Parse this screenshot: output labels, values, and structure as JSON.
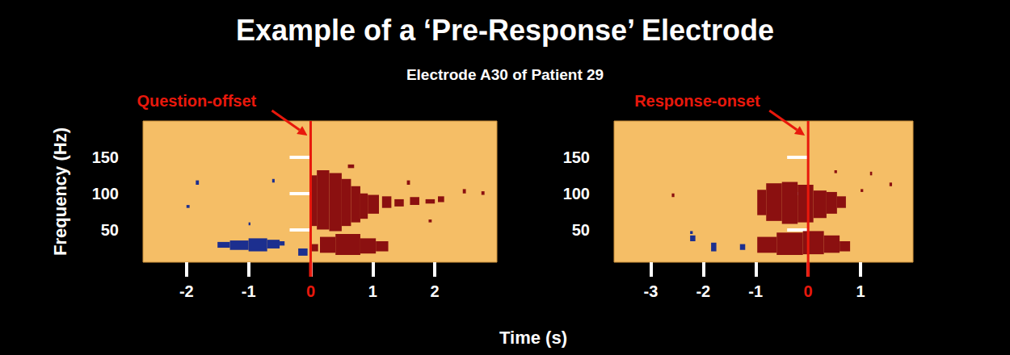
{
  "title": "Example of a ‘Pre-Response’ Electrode",
  "subtitle": "Electrode A30 of Patient 29",
  "xlabel": "Time (s)",
  "ylabel": "Frequency (Hz)",
  "chart_data": [
    {
      "type": "heatmap",
      "title": "Question-offset",
      "event_time": 0,
      "xlim": [
        -2.7,
        3.0
      ],
      "xticks": [
        -2,
        -1,
        0,
        1,
        2
      ],
      "ylim": [
        5,
        200
      ],
      "yticks": [
        50,
        100,
        150
      ],
      "series": [
        {
          "color": "#8b1010",
          "cells": [
            [
              0.0,
              0.1,
              55,
              125
            ],
            [
              0.1,
              0.3,
              50,
              132
            ],
            [
              0.3,
              0.5,
              48,
              128
            ],
            [
              0.5,
              0.65,
              55,
              120
            ],
            [
              0.65,
              0.8,
              60,
              110
            ],
            [
              0.8,
              0.92,
              65,
              100
            ],
            [
              0.92,
              1.1,
              72,
              98
            ],
            [
              1.15,
              1.3,
              80,
              96
            ],
            [
              1.35,
              1.5,
              82,
              92
            ],
            [
              1.6,
              1.75,
              84,
              95
            ],
            [
              1.85,
              2.0,
              86,
              92
            ],
            [
              2.05,
              2.15,
              88,
              96
            ],
            [
              0.15,
              0.4,
              18,
              40
            ],
            [
              0.4,
              0.8,
              15,
              44
            ],
            [
              0.8,
              1.05,
              17,
              38
            ],
            [
              1.05,
              1.25,
              20,
              34
            ],
            [
              0.0,
              0.12,
              20,
              30
            ],
            [
              2.45,
              2.5,
              100,
              106
            ],
            [
              2.75,
              2.8,
              98,
              103
            ],
            [
              1.55,
              1.6,
              112,
              118
            ],
            [
              0.6,
              0.7,
              135,
              140
            ],
            [
              1.9,
              1.95,
              60,
              64
            ]
          ]
        },
        {
          "color": "#1c2f8f",
          "cells": [
            [
              -1.5,
              -1.3,
              25,
              33
            ],
            [
              -1.3,
              -1.0,
              22,
              35
            ],
            [
              -1.0,
              -0.7,
              20,
              38
            ],
            [
              -0.7,
              -0.5,
              24,
              36
            ],
            [
              -0.5,
              -0.42,
              28,
              34
            ],
            [
              -1.85,
              -1.8,
              112,
              118
            ],
            [
              -1.0,
              -0.97,
              56,
              60
            ],
            [
              -0.62,
              -0.58,
              115,
              120
            ],
            [
              -2.0,
              -1.95,
              80,
              84
            ],
            [
              -0.2,
              -0.05,
              14,
              24
            ]
          ]
        }
      ]
    },
    {
      "type": "heatmap",
      "title": "Response-onset",
      "event_time": 0,
      "xlim": [
        -3.7,
        2.0
      ],
      "xticks": [
        -3,
        -2,
        -1,
        0,
        1
      ],
      "ylim": [
        5,
        200
      ],
      "yticks": [
        50,
        100,
        150
      ],
      "series": [
        {
          "color": "#8b1010",
          "cells": [
            [
              -0.97,
              -0.8,
              70,
              105
            ],
            [
              -0.8,
              -0.5,
              62,
              114
            ],
            [
              -0.5,
              -0.2,
              58,
              116
            ],
            [
              -0.2,
              0.1,
              60,
              112
            ],
            [
              0.1,
              0.35,
              66,
              104
            ],
            [
              0.35,
              0.55,
              72,
              102
            ],
            [
              0.55,
              0.72,
              80,
              96
            ],
            [
              -0.97,
              -0.6,
              18,
              40
            ],
            [
              -0.6,
              -0.1,
              15,
              46
            ],
            [
              -0.1,
              0.3,
              16,
              48
            ],
            [
              0.3,
              0.6,
              18,
              42
            ],
            [
              0.6,
              0.8,
              20,
              34
            ],
            [
              1.18,
              1.22,
              125,
              130
            ],
            [
              1.55,
              1.6,
              110,
              115
            ],
            [
              -2.6,
              -2.55,
              95,
              100
            ],
            [
              0.5,
              0.55,
              128,
              132
            ],
            [
              1.0,
              1.05,
              102,
              106
            ]
          ]
        },
        {
          "color": "#1c2f8f",
          "cells": [
            [
              -2.25,
              -2.15,
              34,
              42
            ],
            [
              -1.85,
              -1.75,
              20,
              32
            ],
            [
              -1.3,
              -1.2,
              22,
              30
            ],
            [
              -2.25,
              -2.2,
              44,
              48
            ]
          ]
        }
      ]
    }
  ]
}
